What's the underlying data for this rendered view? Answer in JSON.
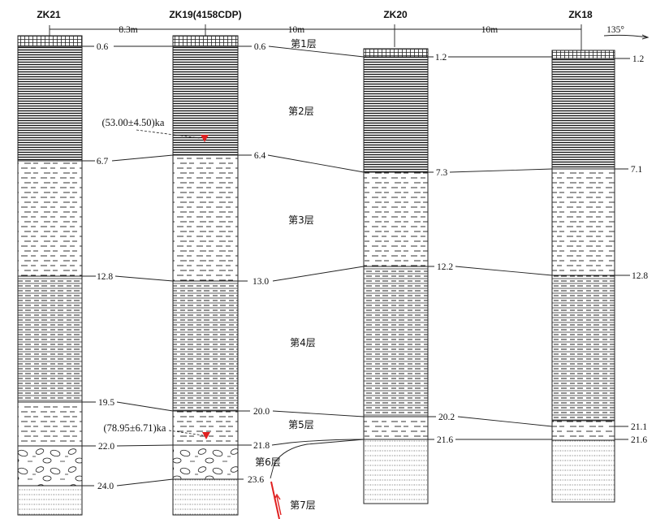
{
  "boreholes": [
    {
      "id": "zk21",
      "name": "ZK21",
      "interfaces": [
        "0.6",
        "6.7",
        "12.8",
        "19.5",
        "22.0",
        "24.0"
      ]
    },
    {
      "id": "zk19",
      "name": "ZK19(4158CDP)",
      "interfaces": [
        "0.6",
        "6.4",
        "13.0",
        "20.0",
        "21.8",
        "23.6"
      ]
    },
    {
      "id": "zk20",
      "name": "ZK20",
      "interfaces": [
        "1.2",
        "7.3",
        "12.2",
        "20.2",
        "21.6"
      ]
    },
    {
      "id": "zk18",
      "name": "ZK18",
      "interfaces": [
        "1.2",
        "7.1",
        "12.8",
        "21.1",
        "21.6"
      ]
    }
  ],
  "spacings": [
    "8.3m",
    "10m",
    "10m"
  ],
  "orientation": "135°",
  "layers": [
    "第1层",
    "第2层",
    "第3层",
    "第4层",
    "第5层",
    "第6层",
    "第7层"
  ],
  "ages": [
    "(53.00±4.50)ka",
    "(78.95±6.71)ka"
  ],
  "colors": {
    "sample_marker": "#e02020",
    "fault": "#e02020",
    "line": "#222222"
  }
}
